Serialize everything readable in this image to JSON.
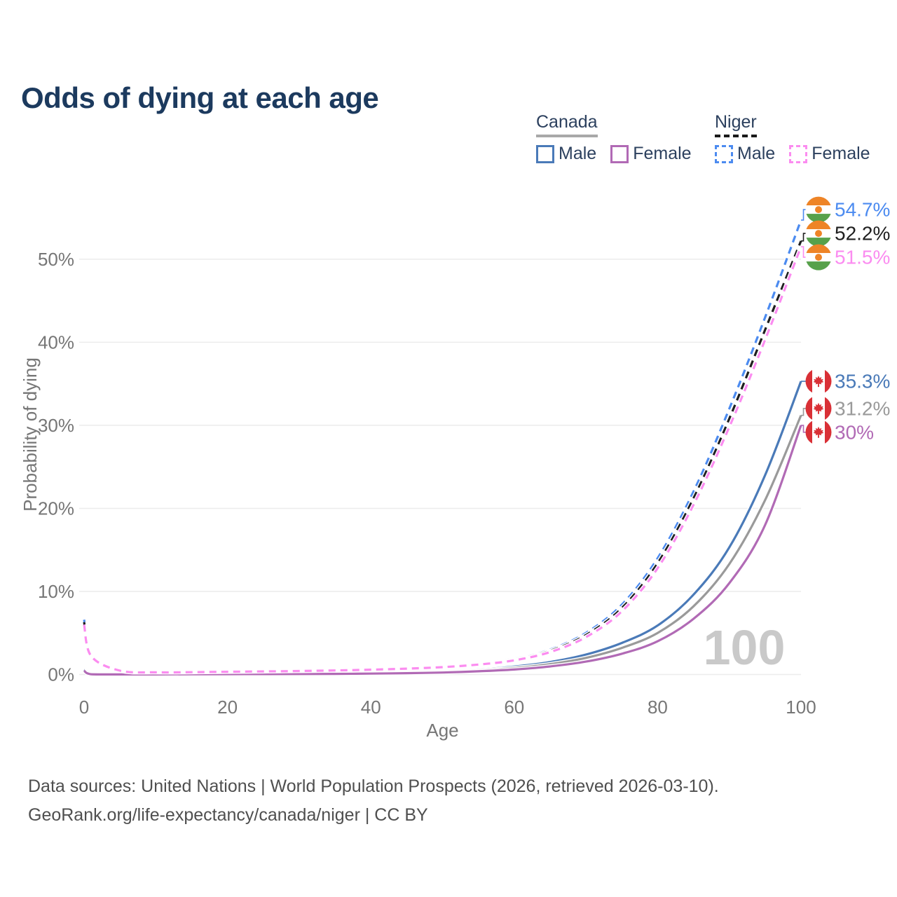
{
  "title": "Odds of dying at each age",
  "legend": {
    "groups": [
      {
        "name": "Canada",
        "line_style": "solid",
        "line_color": "#9a9a9a",
        "items": [
          {
            "label": "Male",
            "color": "#4a7ab8"
          },
          {
            "label": "Female",
            "color": "#b16ab5"
          }
        ]
      },
      {
        "name": "Niger",
        "line_style": "dashed",
        "line_color": "#1f1f1f",
        "items": [
          {
            "label": "Male",
            "color": "#4c8bf0"
          },
          {
            "label": "Female",
            "color": "#fb8cf0"
          }
        ]
      }
    ]
  },
  "chart_data": {
    "type": "line",
    "title": "Odds of dying at each age",
    "xlabel": "Age",
    "ylabel": "Probability of dying",
    "xlim": [
      0,
      100
    ],
    "ylim": [
      0,
      57
    ],
    "grid": "horizontal",
    "legend_position": "top-right",
    "hover_age_label": "100",
    "x_ticks": [
      0,
      20,
      40,
      60,
      80,
      100
    ],
    "y_ticks": [
      0,
      10,
      20,
      30,
      40,
      50
    ],
    "y_tick_labels": [
      "0%",
      "10%",
      "20%",
      "30%",
      "40%",
      "50%"
    ],
    "x": [
      0,
      1,
      5,
      10,
      15,
      20,
      25,
      30,
      35,
      40,
      45,
      50,
      55,
      60,
      65,
      70,
      75,
      80,
      85,
      90,
      95,
      100
    ],
    "series": [
      {
        "id": "canada-male",
        "name": "Canada Male",
        "color": "#4a7ab8",
        "dashed": false,
        "flag": "canada",
        "end_label": "35.3%",
        "values": [
          0.55,
          0.04,
          0.01,
          0.012,
          0.05,
          0.09,
          0.1,
          0.12,
          0.14,
          0.18,
          0.25,
          0.38,
          0.6,
          0.95,
          1.5,
          2.4,
          3.8,
          5.9,
          9.6,
          15.3,
          24.0,
          35.3
        ]
      },
      {
        "id": "canada-both",
        "name": "Canada Both sexes",
        "color": "#9a9a9a",
        "dashed": false,
        "flag": "canada",
        "end_label": "31.2%",
        "values": [
          0.5,
          0.035,
          0.009,
          0.011,
          0.04,
          0.07,
          0.08,
          0.09,
          0.11,
          0.15,
          0.21,
          0.31,
          0.5,
          0.78,
          1.25,
          2.0,
          3.2,
          5.0,
          8.2,
          13.3,
          21.0,
          31.2
        ]
      },
      {
        "id": "canada-female",
        "name": "Canada Female",
        "color": "#b16ab5",
        "dashed": false,
        "flag": "canada",
        "end_label": "30%",
        "values": [
          0.45,
          0.03,
          0.008,
          0.01,
          0.03,
          0.04,
          0.05,
          0.06,
          0.08,
          0.11,
          0.16,
          0.24,
          0.39,
          0.6,
          0.97,
          1.55,
          2.5,
          4.0,
          6.7,
          11.0,
          18.0,
          30.0
        ]
      },
      {
        "id": "niger-male",
        "name": "Niger Male",
        "color": "#4c8bf0",
        "dashed": true,
        "flag": "niger",
        "end_label": "54.7%",
        "values": [
          6.6,
          2.5,
          0.55,
          0.3,
          0.32,
          0.38,
          0.42,
          0.48,
          0.55,
          0.65,
          0.8,
          1.0,
          1.35,
          1.9,
          3.0,
          5.0,
          8.4,
          14.0,
          22.0,
          32.0,
          43.0,
          54.7
        ]
      },
      {
        "id": "niger-both",
        "name": "Niger Both sexes",
        "color": "#1f1f1f",
        "dashed": true,
        "flag": "niger",
        "end_label": "52.2%",
        "values": [
          6.3,
          2.35,
          0.5,
          0.28,
          0.3,
          0.35,
          0.39,
          0.45,
          0.52,
          0.61,
          0.75,
          0.94,
          1.27,
          1.8,
          2.85,
          4.75,
          8.0,
          13.4,
          21.2,
          30.8,
          41.5,
          52.2
        ]
      },
      {
        "id": "niger-female",
        "name": "Niger Female",
        "color": "#fb8cf0",
        "dashed": true,
        "flag": "niger",
        "end_label": "51.5%",
        "values": [
          6.0,
          2.2,
          0.46,
          0.26,
          0.28,
          0.33,
          0.37,
          0.42,
          0.49,
          0.58,
          0.71,
          0.89,
          1.2,
          1.7,
          2.7,
          4.5,
          7.6,
          12.8,
          20.4,
          29.8,
          40.3,
          51.5
        ]
      }
    ],
    "flag_colors": {
      "canada_red": "#d93036",
      "niger_orange": "#ee8427",
      "niger_green": "#57a14b"
    }
  },
  "footer": {
    "line1": "Data sources: United Nations | World Population Prospects (2026, retrieved 2026-03-10).",
    "line2": "GeoRank.org/life-expectancy/canada/niger | CC BY"
  }
}
